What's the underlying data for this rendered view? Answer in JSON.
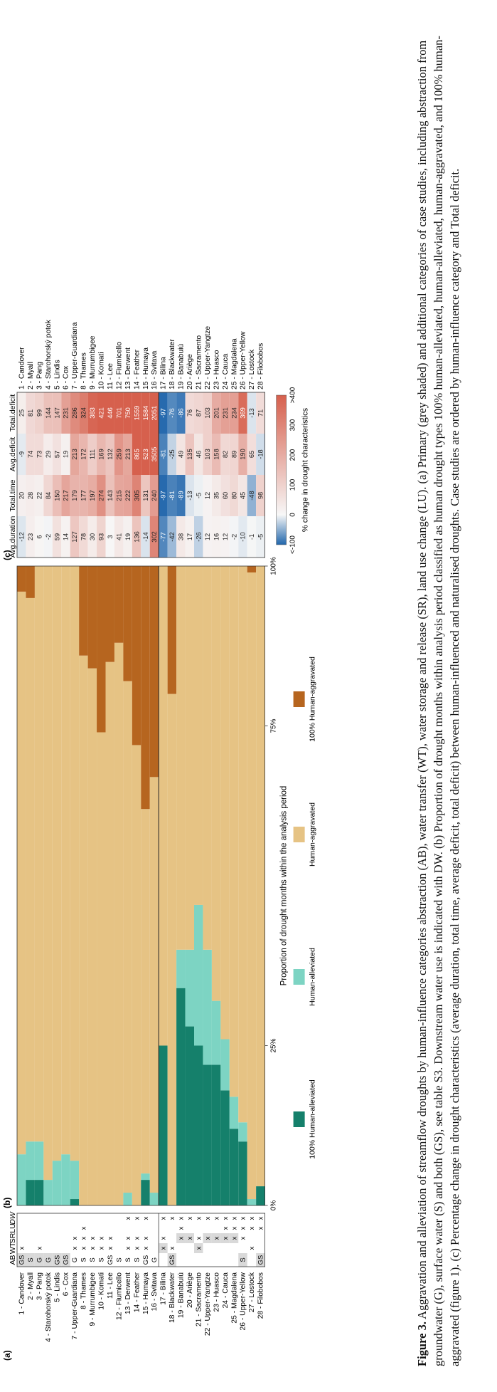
{
  "panels": {
    "a": "(a)",
    "b": "(b)",
    "c": "(c)"
  },
  "table_headers": [
    "AB",
    "WT",
    "SR",
    "LU",
    "DW"
  ],
  "cases": [
    {
      "name": "1 - Candover",
      "AB": "GS",
      "WT": "x",
      "SR": "",
      "LU": "",
      "DW": "",
      "gray": true
    },
    {
      "name": "2 - Myall",
      "AB": "S",
      "WT": "",
      "SR": "",
      "LU": "",
      "DW": "",
      "gray": true
    },
    {
      "name": "3 - Pang",
      "AB": "G",
      "WT": "x",
      "SR": "",
      "LU": "",
      "DW": "",
      "gray": true
    },
    {
      "name": "4 - Starohorský potok",
      "AB": "G",
      "WT": "",
      "SR": "",
      "LU": "",
      "DW": "",
      "gray": true
    },
    {
      "name": "5 - Lindis",
      "AB": "GS",
      "WT": "",
      "SR": "",
      "LU": "",
      "DW": "",
      "gray": true
    },
    {
      "name": "6 - Cox",
      "AB": "GS",
      "WT": "",
      "SR": "",
      "LU": "",
      "DW": "",
      "gray": true
    },
    {
      "name": "7 - Upper-Guardiana",
      "AB": "G",
      "WT": "x",
      "SR": "x",
      "LU": "",
      "DW": "",
      "gray": false
    },
    {
      "name": "8 - Thames",
      "AB": "S",
      "WT": "x",
      "SR": "x",
      "LU": "x",
      "DW": "",
      "gray": false
    },
    {
      "name": "9 - Murrumbigee",
      "AB": "S",
      "WT": "x",
      "SR": "x",
      "LU": "",
      "DW": "",
      "gray": false
    },
    {
      "name": "10 - Komati",
      "AB": "S",
      "WT": "x",
      "SR": "x",
      "LU": "",
      "DW": "",
      "gray": false
    },
    {
      "name": "11 - Lee",
      "AB": "GS",
      "WT": "x",
      "SR": "x",
      "LU": "",
      "DW": "",
      "gray": false
    },
    {
      "name": "12 - Fiumicello",
      "AB": "S",
      "WT": "",
      "SR": "",
      "LU": "",
      "DW": "",
      "gray": false
    },
    {
      "name": "13 - Derwent",
      "AB": "S",
      "WT": "x",
      "SR": "x",
      "LU": "",
      "DW": "x",
      "gray": false
    },
    {
      "name": "14 - Feather",
      "AB": "S",
      "WT": "x",
      "SR": "x",
      "LU": "",
      "DW": "x",
      "gray": false
    },
    {
      "name": "15 - Humaya",
      "AB": "GS",
      "WT": "x",
      "SR": "x",
      "LU": "",
      "DW": "x",
      "gray": false
    },
    {
      "name": "16 - Svitava",
      "AB": "G",
      "WT": "",
      "SR": "",
      "LU": "",
      "DW": "",
      "gray": false
    },
    {
      "name": "17 - Bilina",
      "AB": "",
      "WT": "x",
      "SR": "x",
      "LU": "",
      "DW": "x",
      "gray": true
    },
    {
      "name": "18 - Blackwater",
      "AB": "GS",
      "WT": "x",
      "SR": "",
      "LU": "",
      "DW": "x",
      "gray": true
    },
    {
      "name": "19 - Banabuiú",
      "AB": "",
      "WT": "",
      "SR": "x",
      "LU": "x",
      "DW": "x",
      "gray": true
    },
    {
      "name": "20 - Ariège",
      "AB": "",
      "WT": "",
      "SR": "x",
      "LU": "",
      "DW": "x",
      "gray": true
    },
    {
      "name": "21 - Sacramento",
      "AB": "",
      "WT": "x",
      "SR": "x",
      "LU": "",
      "DW": "x",
      "gray": true
    },
    {
      "name": "22 - Upper-Yangtze",
      "AB": "",
      "WT": "",
      "SR": "x",
      "LU": "",
      "DW": "x",
      "gray": true
    },
    {
      "name": "23 - Huasco",
      "AB": "",
      "WT": "",
      "SR": "x",
      "LU": "",
      "DW": "x",
      "gray": true
    },
    {
      "name": "24 - Cauca",
      "AB": "",
      "WT": "",
      "SR": "x",
      "LU": "x",
      "DW": "x",
      "gray": true
    },
    {
      "name": "25 - Magdalena",
      "AB": "",
      "WT": "",
      "SR": "x",
      "LU": "x",
      "DW": "x",
      "gray": true
    },
    {
      "name": "26 - Upper-Yellow",
      "AB": "S",
      "WT": "",
      "SR": "x",
      "LU": "x",
      "DW": "x",
      "gray": true
    },
    {
      "name": "27 - Lostock",
      "AB": "",
      "WT": "x",
      "SR": "",
      "LU": "x",
      "DW": "x",
      "gray": false
    },
    {
      "name": "28 - Filobobos",
      "AB": "GS",
      "WT": "",
      "SR": "",
      "LU": "x",
      "DW": "x",
      "gray": true
    }
  ],
  "chart_data": [
    {
      "type": "bar",
      "panel": "(b)",
      "stacked": true,
      "orientation": "horizontal",
      "xlabel": "Proportion of drought months within the analysis period",
      "xticks": [
        "0%",
        "25%",
        "75%",
        "100%"
      ],
      "xlim": [
        0,
        100
      ],
      "categories": [
        "1 - Candover",
        "2 - Myall",
        "3 - Pang",
        "4 - Starohorský potok",
        "5 - Lindis",
        "6 - Cox",
        "7 - Upper-Guardiana",
        "8 - Thames",
        "9 - Murrumbigee",
        "10 - Komati",
        "11 - Lee",
        "12 - Fiumicello",
        "13 - Derwent",
        "14 - Feather",
        "15 - Humaya",
        "16 - Svitava",
        "17 - Bilina",
        "18 - Blackwater",
        "19 - Banabuiú",
        "20 - Ariège",
        "21 - Sacramento",
        "22 - Upper-Yangtze",
        "23 - Huasco",
        "24 - Cauca",
        "25 - Magdalena",
        "26 - Upper-Yellow",
        "27 - Lostock",
        "28 - Filobobos"
      ],
      "series": [
        {
          "name": "100% Human-alleviated",
          "color": "#15806b",
          "values": [
            0,
            4,
            4,
            0,
            0,
            0,
            1,
            0,
            0,
            0,
            0,
            0,
            0,
            0,
            4,
            0,
            25,
            0,
            34,
            28,
            25,
            22,
            22,
            18,
            12,
            10,
            0,
            3
          ]
        },
        {
          "name": "Human-alleviated",
          "color": "#7dd4c3",
          "values": [
            8,
            6,
            6,
            4,
            7,
            8,
            6,
            0,
            0,
            0,
            0,
            0,
            2,
            0,
            1,
            2,
            0,
            0,
            6,
            12,
            22,
            18,
            10,
            8,
            5,
            3,
            1,
            0
          ]
        },
        {
          "name": "Human-aggravated",
          "color": "#e6c384",
          "values": [
            88,
            85,
            90,
            96,
            93,
            92,
            93,
            86,
            84,
            74,
            85,
            88,
            80,
            72,
            57,
            65,
            75,
            80,
            60,
            60,
            53,
            60,
            68,
            74,
            83,
            87,
            98,
            97
          ]
        },
        {
          "name": "100% Human-aggravated",
          "color": "#b6651f",
          "values": [
            4,
            5,
            0,
            0,
            0,
            0,
            0,
            14,
            16,
            26,
            15,
            12,
            18,
            28,
            38,
            33,
            0,
            20,
            0,
            0,
            0,
            0,
            0,
            0,
            0,
            0,
            1,
            0
          ]
        }
      ]
    },
    {
      "type": "heatmap",
      "panel": "(c)",
      "columns": [
        "Avg.duration",
        "Total.time",
        "Avg.deficit",
        "Total.deficit"
      ],
      "rows": [
        "1 - Candover",
        "2 - Myall",
        "3 - Pang",
        "4 - Starohorský potok",
        "5 - Lindis",
        "6 - Cox",
        "7 - Upper-Guardiana",
        "8 - Thames",
        "9 - Murrumbigee",
        "10 - Komati",
        "11 - Lee",
        "12 - Fiumicello",
        "13 - Derwent",
        "14 - Feather",
        "15 - Humaya",
        "16 - Svitava",
        "17 - Bilina",
        "18 - Blackwater",
        "19 - Banabuiú",
        "20 - Ariège",
        "21 - Sacramento",
        "22 - Upper-Yangtze",
        "23 - Huasco",
        "24 - Cauca",
        "25 - Magdalena",
        "26 - Upper-Yellow",
        "27 - Lostock",
        "28 - Filobobos"
      ],
      "values": [
        [
          "-12",
          "20",
          "-9",
          "25"
        ],
        [
          "23",
          "28",
          "74",
          "81"
        ],
        [
          "6",
          "22",
          "73",
          "99"
        ],
        [
          "-2",
          "84",
          "29",
          "144"
        ],
        [
          "59",
          "150",
          "57",
          "147"
        ],
        [
          "14",
          "217",
          "19",
          "231"
        ],
        [
          "127",
          "179",
          "213",
          "286"
        ],
        [
          "78",
          "177",
          "172",
          "324"
        ],
        [
          "30",
          "197",
          "111",
          "383"
        ],
        [
          "93",
          "274",
          "169",
          "421"
        ],
        [
          "3",
          "143",
          "132",
          "446"
        ],
        [
          "41",
          "215",
          "259",
          "701"
        ],
        [
          "19",
          "222",
          "213",
          "750"
        ],
        [
          "136",
          "305",
          "865",
          "1559"
        ],
        [
          "-14",
          "131",
          "523",
          "1584"
        ],
        [
          "302",
          "240",
          "3505",
          "2051"
        ],
        [
          "-77",
          "-97",
          "-81",
          "-97"
        ],
        [
          "-42",
          "-81",
          "-25",
          "-76"
        ],
        [
          "38",
          "-89",
          "49",
          "-86"
        ],
        [
          "17",
          "-13",
          "135",
          "76"
        ],
        [
          "-26",
          "-5",
          "46",
          "87"
        ],
        [
          "12",
          "12",
          "103",
          "103"
        ],
        [
          "16",
          "35",
          "158",
          "201"
        ],
        [
          "12",
          "60",
          "82",
          "231"
        ],
        [
          "-2",
          "80",
          "89",
          "234"
        ],
        [
          "-10",
          "45",
          "190",
          "369"
        ],
        [
          "-1",
          "-48",
          "65",
          "-13"
        ],
        [
          "-5",
          "98",
          "-18",
          "71"
        ]
      ],
      "colorbar": {
        "label": "% change in drought characteristics",
        "ticks": [
          "<-100",
          "0",
          "100",
          "200",
          "300",
          ">400"
        ],
        "colors": [
          "#2166ac",
          "#f7f7f7",
          "#d6604d"
        ]
      }
    }
  ],
  "legend": [
    {
      "label": "100% Human-alleviated",
      "color": "#15806b"
    },
    {
      "label": "Human-alleviated",
      "color": "#7dd4c3"
    },
    {
      "label": "Human-aggravated",
      "color": "#e6c384"
    },
    {
      "label": "100% Human-aggravated",
      "color": "#b6651f"
    }
  ],
  "caption": {
    "figure_label": "Figure 3.",
    "text": "Aggravation and alleviation of streamflow droughts by human-influence categories abstraction (AB), water transfer (WT), water storage and release (SR), land use change (LU). (a) Primary (grey shaded) and additional categories of case studies, including abstraction from groundwater (G), surface water (S) and both (GS), see table S3. Downstream water use is indicated with DW. (b) Proportion of drought months within analysis period classified as human drought types 100% human-alleviated, human-alleviated, human-aggravated, and 100% human-aggravated (figure 1). (c) Percentage change in drought characteristics (average duration, total time, average deficit, total deficit) between human-influenced and naturalised droughts. Case studies are ordered by human-influence category and Total deficit."
  }
}
